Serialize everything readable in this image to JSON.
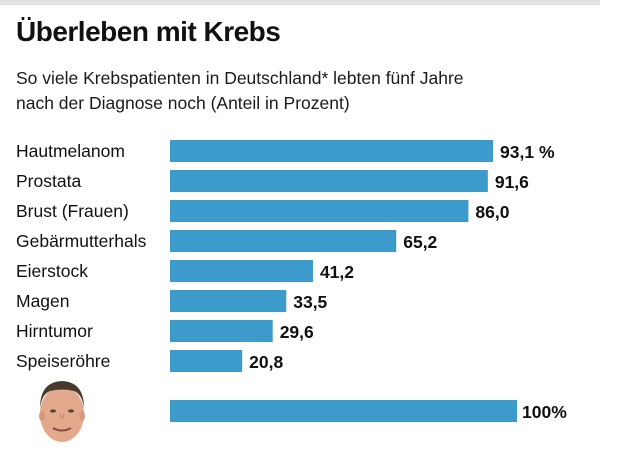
{
  "title": "Überleben mit Krebs",
  "subtitle_line1": "So viele Krebspatienten in Deutschland* lebten fünf Jahre",
  "subtitle_line2": "nach der Diagnose noch (Anteil in Prozent)",
  "colors": {
    "bar": "#3d9bcc",
    "text": "#111111",
    "band": "#e2e2e2"
  },
  "chart_data": {
    "type": "bar",
    "orientation": "horizontal",
    "title": "Überleben mit Krebs",
    "subtitle": "So viele Krebspatienten in Deutschland* lebten fünf Jahre nach der Diagnose noch (Anteil in Prozent)",
    "categories": [
      "Hautmelanom",
      "Prostata",
      "Brust (Frauen)",
      "Gebärmutterhals",
      "Eierstock",
      "Magen",
      "Hirntumor",
      "Speiseröhre"
    ],
    "values": [
      93.1,
      91.6,
      86.0,
      65.2,
      41.2,
      33.5,
      29.6,
      20.8
    ],
    "value_labels": [
      "93,1 %",
      "91,6",
      "86,0",
      "65,2",
      "41,2",
      "33,5",
      "29,6",
      "20,8"
    ],
    "reference": {
      "label": "100%",
      "value": 100,
      "icon": "face-avatar"
    },
    "xlabel": "",
    "ylabel": "",
    "xlim": [
      0,
      100
    ],
    "grid": false,
    "legend": "none"
  }
}
